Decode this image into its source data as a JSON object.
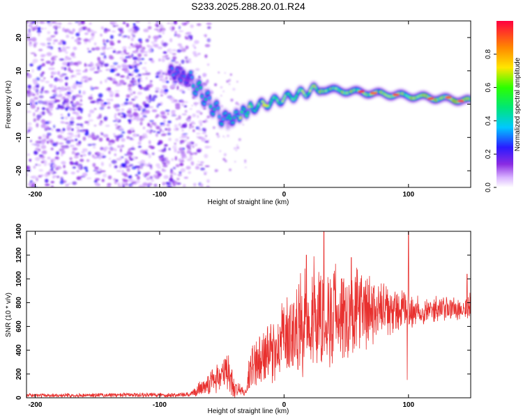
{
  "title": "S233.2025.288.20.01.R24",
  "chart_data": [
    {
      "type": "heatmap",
      "name": "spectrogram",
      "title": "S233.2025.288.20.01.R24",
      "xlabel": "Height of straight line (km)",
      "ylabel": "Frequency (Hz)",
      "xlim": [
        -207,
        150
      ],
      "ylim": [
        -25,
        25
      ],
      "xticks": [
        -200,
        -100,
        0,
        100
      ],
      "yticks": [
        20,
        10,
        0,
        -10,
        -20
      ],
      "colorbar": {
        "label": "Normalized spectral amplitude",
        "range": [
          0,
          1
        ],
        "ticks": [
          "0.0",
          "0.2",
          "0.4",
          "0.6",
          "0.8"
        ]
      },
      "features": [
        {
          "region": "noise",
          "x_range": [
            -207,
            -75
          ],
          "freq_range": [
            -25,
            25
          ],
          "amplitude": [
            0.05,
            0.25
          ]
        },
        {
          "region": "trace",
          "x_range": [
            -92,
            150
          ],
          "freq_start_hz": 10,
          "freq_min_hz": -6,
          "freq_end_hz": 1,
          "amplitude_peak": 0.95
        }
      ]
    },
    {
      "type": "line",
      "name": "snr",
      "xlabel": "Height of straight line (km)",
      "ylabel": "SNR (10 * v/v)",
      "xlim": [
        -207,
        150
      ],
      "ylim": [
        0,
        1400
      ],
      "xticks": [
        -200,
        -100,
        0,
        100
      ],
      "yticks": [
        0,
        200,
        400,
        600,
        800,
        1000,
        1200,
        1400
      ],
      "color": "#e8302e",
      "envelope": [
        {
          "x": -207,
          "mean": 20,
          "amp": 15
        },
        {
          "x": -75,
          "mean": 25,
          "amp": 20
        },
        {
          "x": -65,
          "mean": 100,
          "amp": 80
        },
        {
          "x": -55,
          "mean": 160,
          "amp": 120
        },
        {
          "x": -45,
          "mean": 220,
          "amp": 180
        },
        {
          "x": -40,
          "mean": 80,
          "amp": 80
        },
        {
          "x": -30,
          "mean": 40,
          "amp": 30
        },
        {
          "x": -28,
          "mean": 250,
          "amp": 200
        },
        {
          "x": -10,
          "mean": 380,
          "amp": 250
        },
        {
          "x": 0,
          "mean": 500,
          "amp": 300
        },
        {
          "x": 20,
          "mean": 650,
          "amp": 450
        },
        {
          "x": 40,
          "mean": 700,
          "amp": 420
        },
        {
          "x": 60,
          "mean": 720,
          "amp": 350
        },
        {
          "x": 80,
          "mean": 720,
          "amp": 220
        },
        {
          "x": 100,
          "mean": 730,
          "amp": 150
        },
        {
          "x": 120,
          "mean": 740,
          "amp": 100
        },
        {
          "x": 150,
          "mean": 760,
          "amp": 120
        }
      ],
      "spikes": [
        {
          "x": 32,
          "y": 1400
        },
        {
          "x": 100,
          "y": 1400
        },
        {
          "x": 18,
          "y": 1200
        },
        {
          "x": 54,
          "y": 1180
        },
        {
          "x": 24,
          "y": 1190
        },
        {
          "x": 99,
          "y": 150
        },
        {
          "x": 147,
          "y": 1040
        }
      ]
    }
  ]
}
